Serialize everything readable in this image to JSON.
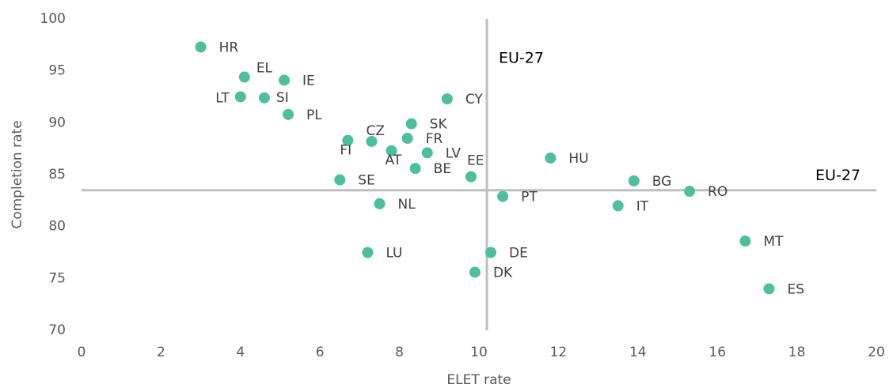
{
  "chart_data": {
    "type": "scatter",
    "x_label": "ELET rate",
    "y_label": "Completion rate",
    "xlim": [
      0,
      20
    ],
    "xticks": [
      0,
      2,
      4,
      6,
      8,
      10,
      12,
      14,
      16,
      18,
      20
    ],
    "ylim": [
      70,
      100
    ],
    "yticks": [
      70,
      75,
      80,
      85,
      90,
      95,
      100
    ],
    "grid": false,
    "vline": {
      "value": 10.2,
      "label": "EU-27"
    },
    "hline": {
      "value": 83.5,
      "label": "EU-27"
    },
    "series": [
      {
        "color": "#4dbf9e",
        "labels": [
          "HR",
          "EL",
          "IE",
          "LT",
          "SI",
          "PL",
          "FI",
          "CZ",
          "SK",
          "FR",
          "AT",
          "LV",
          "BE",
          "EE",
          "SE",
          "CY",
          "HU",
          "BG",
          "RO",
          "IT",
          "PT",
          "NL",
          "LU",
          "DE",
          "DK",
          "MT",
          "ES"
        ],
        "x": [
          3.0,
          4.1,
          5.1,
          4.0,
          4.6,
          5.2,
          6.7,
          7.3,
          8.3,
          8.2,
          7.8,
          8.7,
          8.4,
          9.8,
          6.5,
          9.2,
          11.8,
          13.9,
          15.3,
          13.5,
          10.6,
          7.5,
          7.2,
          10.3,
          9.9,
          16.7,
          17.3
        ],
        "values": [
          97.3,
          94.4,
          94.1,
          92.5,
          92.4,
          90.8,
          88.3,
          88.2,
          89.9,
          88.5,
          87.3,
          87.1,
          85.6,
          84.8,
          84.5,
          92.3,
          86.6,
          84.4,
          83.4,
          82.0,
          82.9,
          82.2,
          77.5,
          77.5,
          75.6,
          78.6,
          74.0
        ]
      }
    ]
  }
}
